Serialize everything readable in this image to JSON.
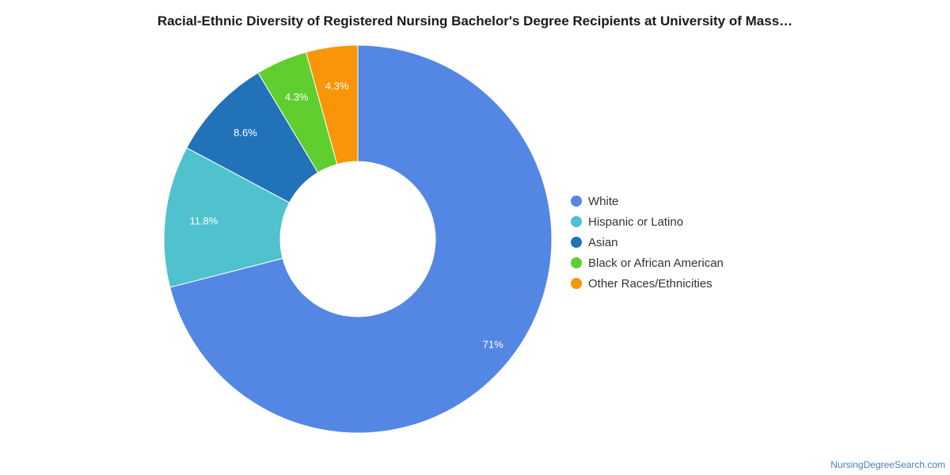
{
  "chart_data": {
    "type": "pie",
    "title": "Racial-Ethnic Diversity of Registered Nursing Bachelor's Degree Recipients at University of Mass…",
    "slices": [
      {
        "label": "White",
        "value": 71,
        "display": "71%",
        "color": "#5486e4"
      },
      {
        "label": "Hispanic or Latino",
        "value": 11.8,
        "display": "11.8%",
        "color": "#50c2ce"
      },
      {
        "label": "Asian",
        "value": 8.6,
        "display": "8.6%",
        "color": "#2172b9"
      },
      {
        "label": "Black or African American",
        "value": 4.3,
        "display": "4.3%",
        "color": "#5fce2e"
      },
      {
        "label": "Other Races/Ethnicities",
        "value": 4.3,
        "display": "4.3%",
        "color": "#f89608"
      }
    ],
    "donut": true,
    "legend_position": "right"
  },
  "footer": {
    "source": "NursingDegreeSearch.com"
  }
}
